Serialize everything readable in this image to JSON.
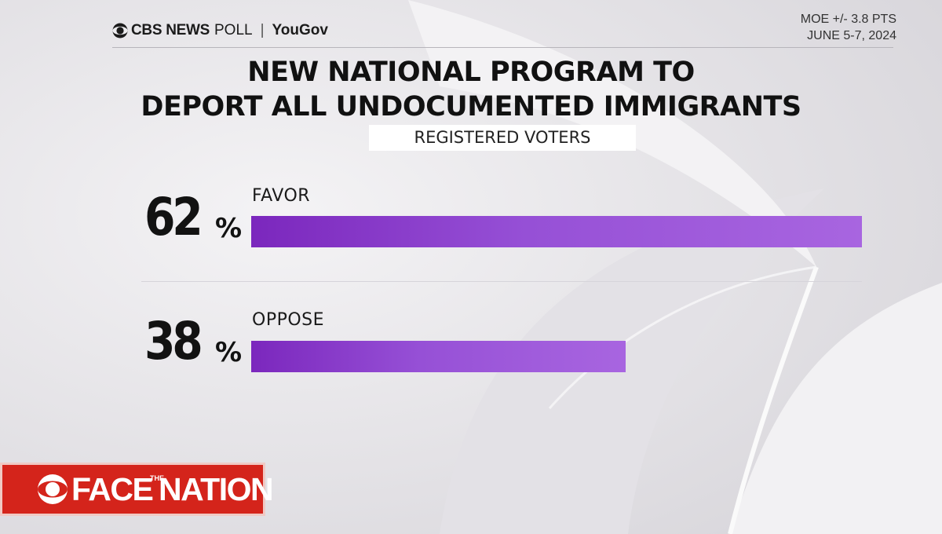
{
  "header": {
    "brand_cbs": "CBS NEWS",
    "brand_poll": "POLL",
    "brand_sep": "|",
    "brand_yougov": "YouGov",
    "moe": "MOE +/- 3.8 PTS",
    "date": "JUNE 5-7, 2024"
  },
  "chart_data": {
    "type": "bar",
    "orientation": "horizontal",
    "title_line1": "NEW NATIONAL PROGRAM TO",
    "title_line2": "DEPORT ALL UNDOCUMENTED IMMIGRANTS",
    "subtitle": "REGISTERED VOTERS",
    "categories": [
      "FAVOR",
      "OPPOSE"
    ],
    "values": [
      62,
      38
    ],
    "value_labels": [
      "62",
      "38"
    ],
    "unit": "%",
    "bar_color": "#9650d6",
    "grid": false
  },
  "footer": {
    "logo_face": "FACE",
    "logo_the": "THE",
    "logo_nation": "NATION",
    "logo_color": "#d4241b"
  },
  "icons": {
    "network_logo": "cbs-eye-icon"
  }
}
